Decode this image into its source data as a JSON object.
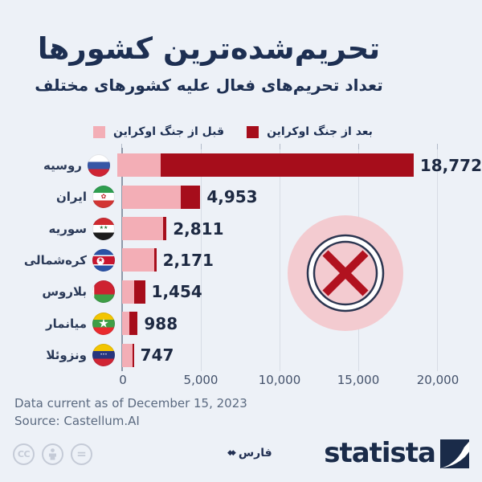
{
  "title": "تحریم‌شده‌ترین کشورها",
  "subtitle": "تعداد تحریم‌های فعال علیه کشورهای مختلف",
  "legend": {
    "before": {
      "label": "قبل از جنگ اوکراین",
      "color": "#f3aeb6"
    },
    "after": {
      "label": "بعد از جنگ اوکراین",
      "color": "#a60d1b"
    }
  },
  "chart_data": {
    "type": "bar",
    "orientation": "horizontal",
    "stacked": true,
    "title": "تحریم‌شده‌ترین کشورها",
    "subtitle": "تعداد تحریم‌های فعال علیه کشورهای مختلف",
    "categories": [
      "روسیه",
      "ایران",
      "سوریه",
      "کره‌شمالی",
      "بلاروس",
      "میانمار",
      "ونزوئلا"
    ],
    "categories_en": [
      "Russia",
      "Iran",
      "Syria",
      "North Korea",
      "Belarus",
      "Myanmar",
      "Venezuela"
    ],
    "series": [
      {
        "name": "قبل از جنگ اوکراین",
        "values": [
          2754,
          3705,
          2598,
          2052,
          744,
          480,
          651
        ]
      },
      {
        "name": "بعد از جنگ اوکراین",
        "values": [
          16018,
          1248,
          213,
          119,
          710,
          508,
          96
        ]
      }
    ],
    "totals": [
      18772,
      4953,
      2811,
      2171,
      1454,
      988,
      747
    ],
    "total_labels": [
      "18,772",
      "4,953",
      "2,811",
      "2,171",
      "1,454",
      "988",
      "747"
    ],
    "xlim": [
      0,
      20000
    ],
    "x_ticks": [
      "0",
      "5,000",
      "10,000",
      "15,000",
      "20,000"
    ],
    "grid": "vertical",
    "legend_position": "top",
    "flags": [
      {
        "name": "russia-flag",
        "stripes": [
          [
            "#ffffff",
            0,
            34
          ],
          [
            "#3757a6",
            34,
            66
          ],
          [
            "#d02433",
            66,
            100
          ]
        ],
        "emblems": []
      },
      {
        "name": "iran-flag",
        "stripes": [
          [
            "#2e9e4f",
            0,
            33
          ],
          [
            "#ffffff",
            33,
            66
          ],
          [
            "#d23533",
            66,
            100
          ]
        ],
        "emblems": [
          {
            "char": "✿",
            "color": "#c0272d",
            "size": 8,
            "x": 50,
            "y": 50
          }
        ]
      },
      {
        "name": "syria-flag",
        "stripes": [
          [
            "#cf2a30",
            0,
            33
          ],
          [
            "#ffffff",
            33,
            66
          ],
          [
            "#1d1d1d",
            66,
            100
          ]
        ],
        "emblems": [
          {
            "char": "★★",
            "color": "#2c7a3f",
            "size": 6,
            "x": 50,
            "y": 49
          }
        ]
      },
      {
        "name": "north-korea-flag",
        "stripes": [
          [
            "#2b52a5",
            0,
            27
          ],
          [
            "#ffffff",
            27,
            33
          ],
          [
            "#c8152e",
            33,
            67
          ],
          [
            "#ffffff",
            67,
            73
          ],
          [
            "#2b52a5",
            73,
            100
          ]
        ],
        "emblems": [
          {
            "char": "●",
            "color": "#ffffff",
            "size": 12,
            "x": 36,
            "y": 50
          },
          {
            "char": "★",
            "color": "#c8152e",
            "size": 8,
            "x": 36,
            "y": 50
          }
        ]
      },
      {
        "name": "belarus-flag",
        "stripes": [
          [
            "#ce2231",
            0,
            63
          ],
          [
            "#3f9e46",
            63,
            100
          ]
        ],
        "emblems": [
          {
            "char": "▌",
            "color": "#ffffff",
            "size": 26,
            "x": 8,
            "y": 50
          }
        ]
      },
      {
        "name": "myanmar-flag",
        "stripes": [
          [
            "#f3c500",
            0,
            33
          ],
          [
            "#3f9e46",
            33,
            66
          ],
          [
            "#ea2a2e",
            66,
            100
          ]
        ],
        "emblems": [
          {
            "char": "★",
            "color": "#ffffff",
            "size": 15,
            "x": 50,
            "y": 50
          }
        ]
      },
      {
        "name": "venezuela-flag",
        "stripes": [
          [
            "#f3c500",
            0,
            33
          ],
          [
            "#27357e",
            33,
            66
          ],
          [
            "#d02433",
            66,
            100
          ]
        ],
        "emblems": [
          {
            "char": "•••",
            "color": "#ffffff",
            "size": 5,
            "x": 50,
            "y": 50
          }
        ]
      }
    ]
  },
  "symbol": {
    "meaning": "sanctions-crossed-circle",
    "circle_color": "#f3cbd0",
    "ring_color": "#2b3550",
    "x_color": "#b1121f"
  },
  "footer": {
    "line1": "Data current as of December 15, 2023",
    "line2": "Source: Castellum.AI"
  },
  "branding": {
    "statista": "statista",
    "fars": "فارس",
    "fars_icon": "◆◆",
    "cc": "CC",
    "nd": "="
  },
  "colors": {
    "background": "#edf1f7",
    "title_navy": "#1d2f52",
    "label_navy": "#2b3a58",
    "value_navy": "#1d2942",
    "bar_pink": "#f3aeb6",
    "bar_red": "#a60d1b",
    "circle_pink": "#f3cbd0",
    "x_red": "#b1121f",
    "ring_navy": "#2b3550",
    "gridline": "#d7dce5",
    "axis": "#8e98a8",
    "tick_text": "#44526b",
    "footer_text": "#5b6a80",
    "cc_gray": "#c5cbd7",
    "statista_navy": "#1a2b49"
  }
}
